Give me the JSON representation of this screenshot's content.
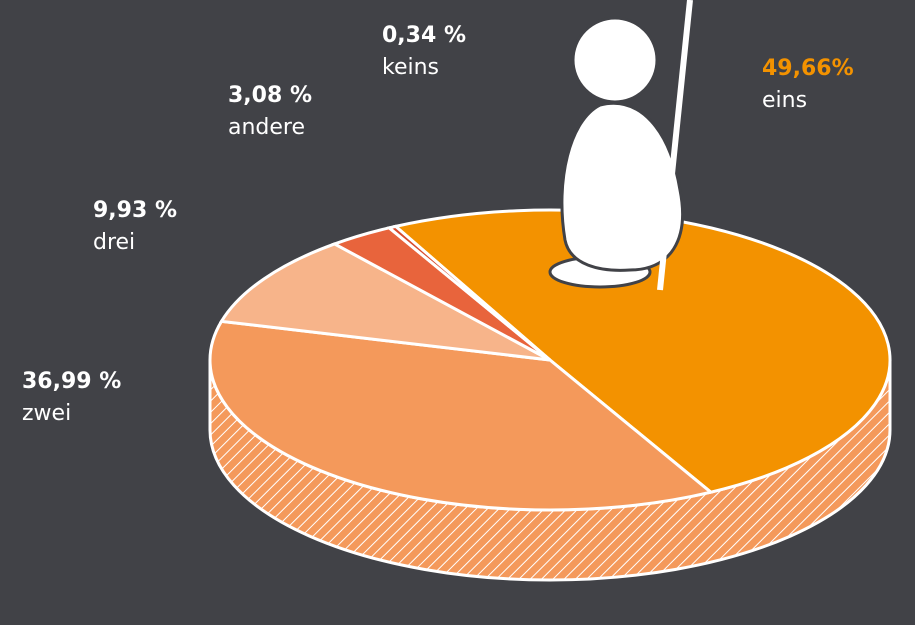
{
  "chart_data": {
    "type": "pie",
    "categories": [
      "eins",
      "zwei",
      "drei",
      "andere",
      "keins"
    ],
    "values": [
      49.66,
      36.99,
      9.93,
      3.08,
      0.34
    ],
    "value_labels": [
      "49,66%",
      "36,99 %",
      "9,93 %",
      "3,08 %",
      "0,34 %"
    ],
    "colors": [
      "#f39200",
      "#f4995b",
      "#f7b48a",
      "#e8643c",
      "#d84a2c"
    ]
  }
}
